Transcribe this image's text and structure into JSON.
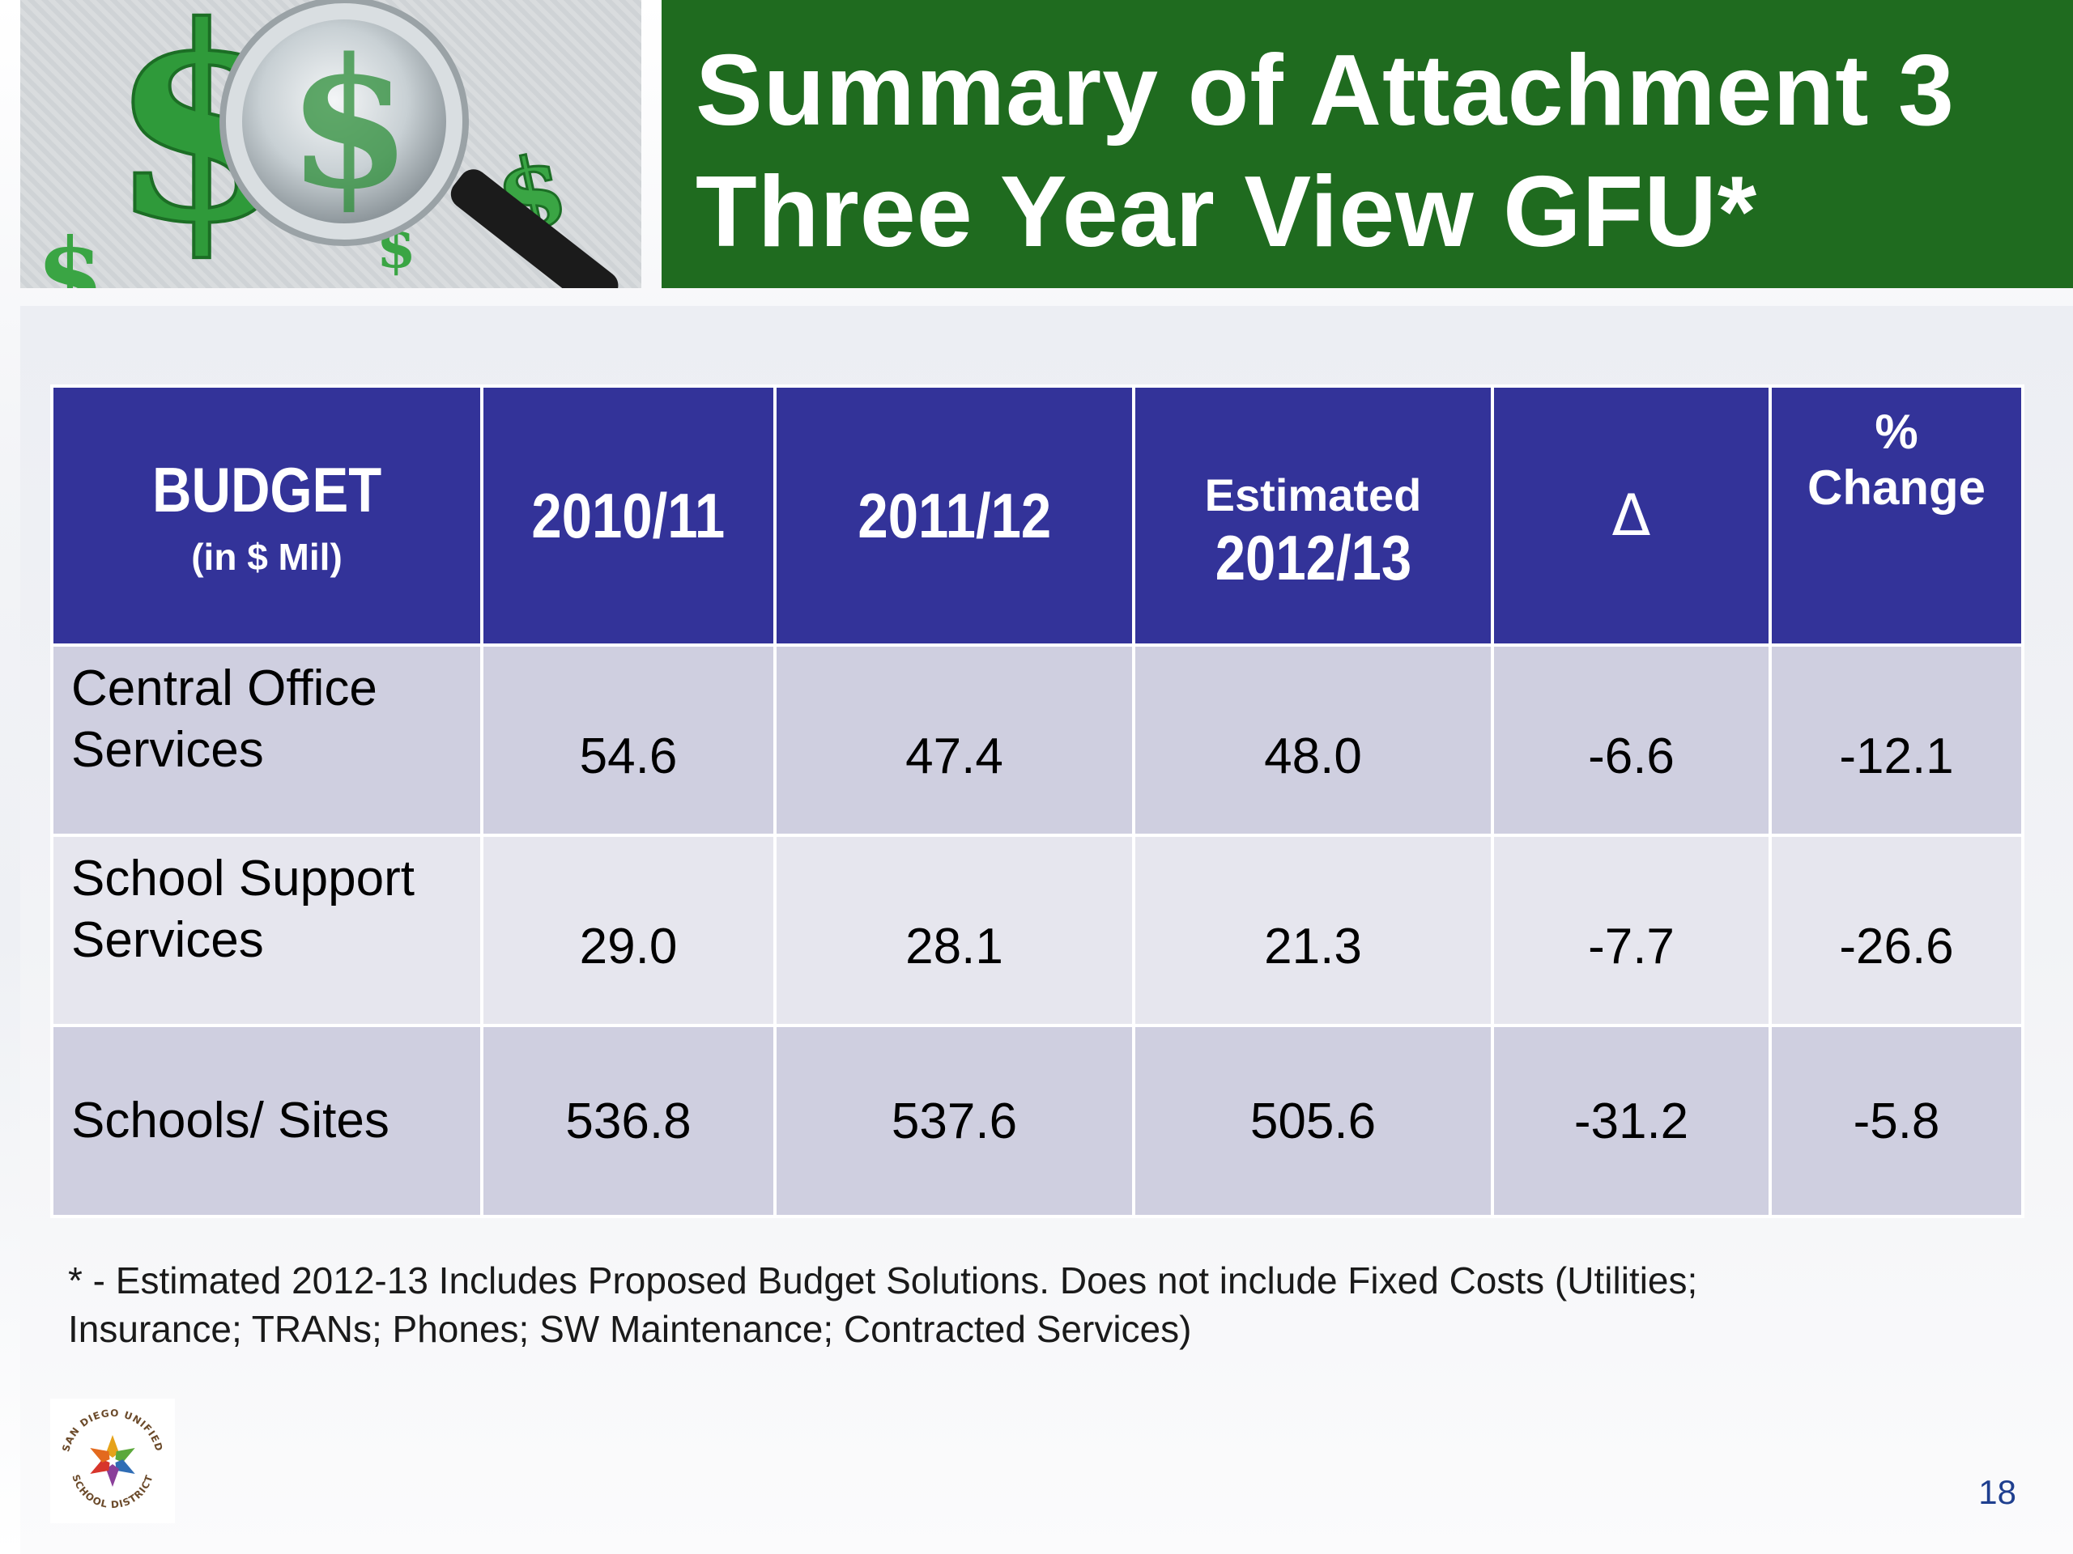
{
  "header": {
    "title_line1": "Summary of Attachment 3",
    "title_line2": "Three Year View GFU*"
  },
  "table": {
    "columns": {
      "budget": "BUDGET",
      "budget_sub": "(in $ Mil)",
      "y1": "2010/11",
      "y2": "2011/12",
      "est_label": "Estimated",
      "est_year": "2012/13",
      "delta": "Δ",
      "pct_symbol": "%",
      "pct_label": "Change"
    },
    "rows": [
      {
        "label_line1": "Central Office",
        "label_line2": "Services",
        "y1": "54.6",
        "y2": "47.4",
        "est": "48.0",
        "delta": "-6.6",
        "pct": "-12.1"
      },
      {
        "label_line1": "School Support",
        "label_line2": "Services",
        "y1": "29.0",
        "y2": "28.1",
        "est": "21.3",
        "delta": "-7.7",
        "pct": "-26.6"
      },
      {
        "label_line1": "Schools/ Sites",
        "y1": "536.8",
        "y2": "537.6",
        "est": "505.6",
        "delta": "-31.2",
        "pct": "-5.8"
      }
    ]
  },
  "footnote": {
    "line1": "* -  Estimated 2012-13 Includes Proposed Budget Solutions.  Does not include Fixed Costs (Utilities;",
    "line2": "Insurance; TRANs; Phones; SW Maintenance; Contracted Services)"
  },
  "logo": {
    "text_top": "SAN DIEGO UNIFIED",
    "text_bottom": "SCHOOL DISTRICT"
  },
  "page_number": "18",
  "colors": {
    "title_green": "#1f6b1f",
    "header_blue": "#333399",
    "row_dark": "#cfcfe0",
    "row_light": "#e6e6ee",
    "dollar_green": "#2f9a3a"
  },
  "icons": [
    "dollar-sign-icon",
    "magnifying-glass-icon",
    "star-logo-icon"
  ]
}
